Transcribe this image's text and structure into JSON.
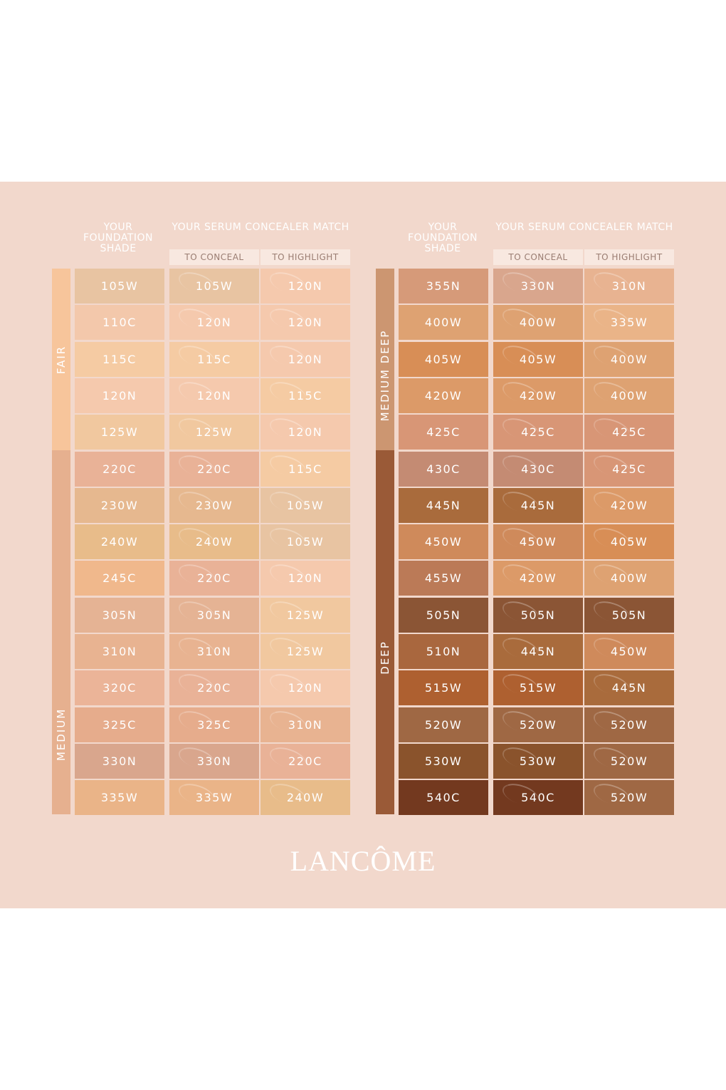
{
  "brand": "LANCÔME",
  "headers": {
    "foundation": "YOUR FOUNDATION SHADE",
    "match": "YOUR SERUM CONCEALER MATCH",
    "conceal": "TO CONCEAL",
    "highlight": "TO HIGHLIGHT"
  },
  "left": {
    "bands": [
      {
        "label": "FAIR",
        "color": "#f7c59b"
      },
      {
        "label": "MEDIUM",
        "color": "#e6b08f"
      }
    ],
    "rows": [
      {
        "shade": "105W",
        "shade_color": "#e8c4a2",
        "conceal": "105W",
        "conceal_color": "#e8c4a2",
        "highlight": "120N",
        "highlight_color": "#f5c9ad"
      },
      {
        "shade": "110C",
        "shade_color": "#f3c8ab",
        "conceal": "120N",
        "conceal_color": "#f5c9ad",
        "highlight": "120N",
        "highlight_color": "#f5c9ad"
      },
      {
        "shade": "115C",
        "shade_color": "#f5cba3",
        "conceal": "115C",
        "conceal_color": "#f5cba3",
        "highlight": "120N",
        "highlight_color": "#f5c9ad"
      },
      {
        "shade": "120N",
        "shade_color": "#f5c9ad",
        "conceal": "120N",
        "conceal_color": "#f5c9ad",
        "highlight": "115C",
        "highlight_color": "#f5cba3"
      },
      {
        "shade": "125W",
        "shade_color": "#f1c89f",
        "conceal": "125W",
        "conceal_color": "#f1c89f",
        "highlight": "120N",
        "highlight_color": "#f5c9ad"
      },
      {
        "shade": "220C",
        "shade_color": "#e9b297",
        "conceal": "220C",
        "conceal_color": "#e9b297",
        "highlight": "115C",
        "highlight_color": "#f5cba3"
      },
      {
        "shade": "230W",
        "shade_color": "#e6b88f",
        "conceal": "230W",
        "conceal_color": "#e6b88f",
        "highlight": "105W",
        "highlight_color": "#e8c4a2"
      },
      {
        "shade": "240W",
        "shade_color": "#e8bc8a",
        "conceal": "240W",
        "conceal_color": "#e8bc8a",
        "highlight": "105W",
        "highlight_color": "#e8c4a2"
      },
      {
        "shade": "245C",
        "shade_color": "#f0b88c",
        "conceal": "220C",
        "conceal_color": "#e9b297",
        "highlight": "120N",
        "highlight_color": "#f5c9ad"
      },
      {
        "shade": "305N",
        "shade_color": "#e5b394",
        "conceal": "305N",
        "conceal_color": "#e5b394",
        "highlight": "125W",
        "highlight_color": "#f1c89f"
      },
      {
        "shade": "310N",
        "shade_color": "#e8b391",
        "conceal": "310N",
        "conceal_color": "#e8b391",
        "highlight": "125W",
        "highlight_color": "#f1c89f"
      },
      {
        "shade": "320C",
        "shade_color": "#ebb498",
        "conceal": "220C",
        "conceal_color": "#e9b297",
        "highlight": "120N",
        "highlight_color": "#f5c9ad"
      },
      {
        "shade": "325C",
        "shade_color": "#e6ac8c",
        "conceal": "325C",
        "conceal_color": "#e6ac8c",
        "highlight": "310N",
        "highlight_color": "#e8b391"
      },
      {
        "shade": "330N",
        "shade_color": "#d9a68d",
        "conceal": "330N",
        "conceal_color": "#d9a68d",
        "highlight": "220C",
        "highlight_color": "#e9b297"
      },
      {
        "shade": "335W",
        "shade_color": "#eab488",
        "conceal": "335W",
        "conceal_color": "#eab488",
        "highlight": "240W",
        "highlight_color": "#e8bc8a"
      }
    ]
  },
  "right": {
    "bands": [
      {
        "label": "MEDIUM DEEP",
        "color": "#cc9671"
      },
      {
        "label": "DEEP",
        "color": "#9a5a37"
      }
    ],
    "rows": [
      {
        "shade": "355N",
        "shade_color": "#d69a79",
        "conceal": "330N",
        "conceal_color": "#d9a68d",
        "highlight": "310N",
        "highlight_color": "#e8b391"
      },
      {
        "shade": "400W",
        "shade_color": "#dea272",
        "conceal": "400W",
        "conceal_color": "#dea272",
        "highlight": "335W",
        "highlight_color": "#eab488"
      },
      {
        "shade": "405W",
        "shade_color": "#d88e56",
        "conceal": "405W",
        "conceal_color": "#d88e56",
        "highlight": "400W",
        "highlight_color": "#dea272"
      },
      {
        "shade": "420W",
        "shade_color": "#dc9a68",
        "conceal": "420W",
        "conceal_color": "#dc9a68",
        "highlight": "400W",
        "highlight_color": "#dea272"
      },
      {
        "shade": "425C",
        "shade_color": "#d89676",
        "conceal": "425C",
        "conceal_color": "#d89676",
        "highlight": "425C",
        "highlight_color": "#d89676"
      },
      {
        "shade": "430C",
        "shade_color": "#c48b73",
        "conceal": "430C",
        "conceal_color": "#c48b73",
        "highlight": "425C",
        "highlight_color": "#d89676"
      },
      {
        "shade": "445N",
        "shade_color": "#a96b3c",
        "conceal": "445N",
        "conceal_color": "#a96b3c",
        "highlight": "420W",
        "highlight_color": "#dc9a68"
      },
      {
        "shade": "450W",
        "shade_color": "#cf8a5b",
        "conceal": "450W",
        "conceal_color": "#cf8a5b",
        "highlight": "405W",
        "highlight_color": "#d88e56"
      },
      {
        "shade": "455W",
        "shade_color": "#bb7a57",
        "conceal": "420W",
        "conceal_color": "#dc9a68",
        "highlight": "400W",
        "highlight_color": "#dea272"
      },
      {
        "shade": "505N",
        "shade_color": "#8b5535",
        "conceal": "505N",
        "conceal_color": "#8b5535",
        "highlight": "505N",
        "highlight_color": "#8b5535"
      },
      {
        "shade": "510N",
        "shade_color": "#a9673e",
        "conceal": "445N",
        "conceal_color": "#a96b3c",
        "highlight": "450W",
        "highlight_color": "#cf8a5b"
      },
      {
        "shade": "515W",
        "shade_color": "#ae6030",
        "conceal": "515W",
        "conceal_color": "#ae6030",
        "highlight": "445N",
        "highlight_color": "#a96b3c"
      },
      {
        "shade": "520W",
        "shade_color": "#9f6844",
        "conceal": "520W",
        "conceal_color": "#9f6844",
        "highlight": "520W",
        "highlight_color": "#9f6844"
      },
      {
        "shade": "530W",
        "shade_color": "#8a532c",
        "conceal": "530W",
        "conceal_color": "#8a532c",
        "highlight": "520W",
        "highlight_color": "#9f6844"
      },
      {
        "shade": "540C",
        "shade_color": "#73391f",
        "conceal": "540C",
        "conceal_color": "#73391f",
        "highlight": "520W",
        "highlight_color": "#9f6844"
      }
    ]
  }
}
